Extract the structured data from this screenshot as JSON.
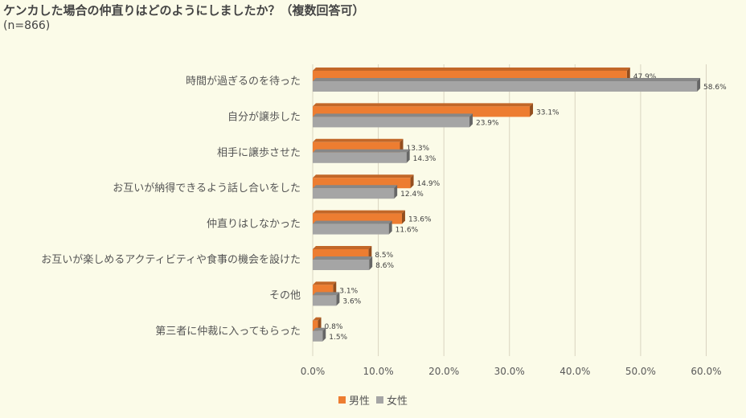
{
  "title": "ケンカした場合の仲直りはどのようにしましたか？（複数回答可）",
  "subtitle": "(n=866)",
  "colors": {
    "male": "#ed7d31",
    "female": "#a5a5a5",
    "grid": "#d9d4c0",
    "text": "#555555"
  },
  "chart_data": {
    "type": "bar",
    "orientation": "horizontal",
    "categories": [
      "時間が過ぎるのを待った",
      "自分が譲歩した",
      "相手に譲歩させた",
      "お互いが納得できるよう話し合いをした",
      "仲直りはしなかった",
      "お互いが楽しめるアクティビティや食事の機会を設けた",
      "その他",
      "第三者に仲裁に入ってもらった"
    ],
    "series": [
      {
        "name": "男性",
        "values": [
          47.9,
          33.1,
          13.3,
          14.9,
          13.6,
          8.5,
          3.1,
          0.8
        ]
      },
      {
        "name": "女性",
        "values": [
          58.6,
          23.9,
          14.3,
          12.4,
          11.6,
          8.6,
          3.6,
          1.5
        ]
      }
    ],
    "data_labels": [
      [
        "47.9%",
        "33.1%",
        "13.3%",
        "14.9%",
        "13.6%",
        "8.5%",
        "3.1%",
        "0.8%"
      ],
      [
        "58.6%",
        "23.9%",
        "14.3%",
        "12.4%",
        "11.6%",
        "8.6%",
        "3.6%",
        "1.5%"
      ]
    ],
    "xticks": [
      "0.0%",
      "10.0%",
      "20.0%",
      "30.0%",
      "40.0%",
      "50.0%",
      "60.0%"
    ],
    "xlim": [
      0,
      60
    ],
    "grid": true,
    "legend_position": "bottom"
  }
}
